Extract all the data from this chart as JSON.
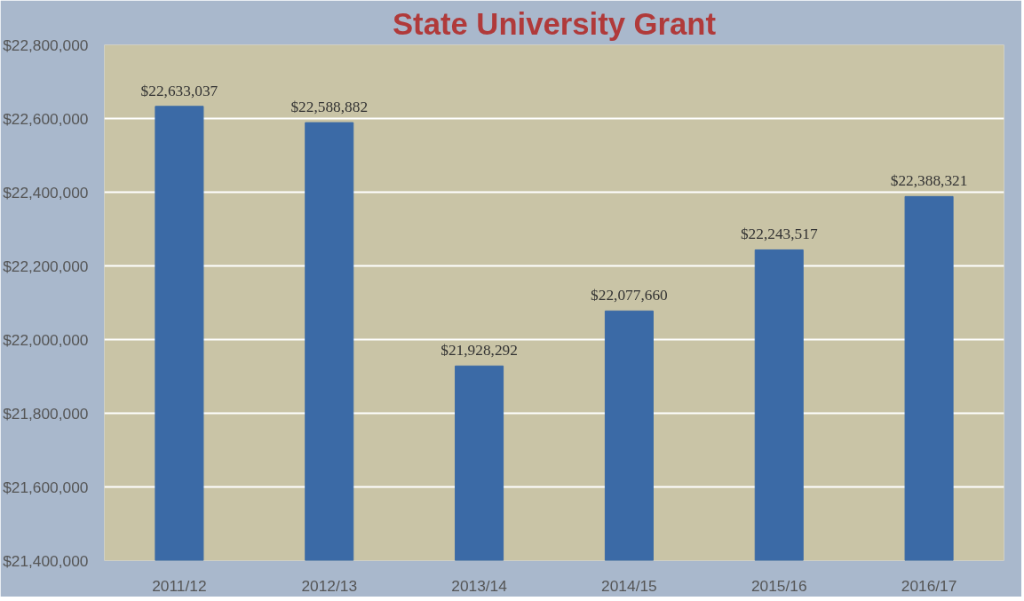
{
  "chart_data": {
    "type": "bar",
    "title": "State University Grant",
    "categories": [
      "2011/12",
      "2012/13",
      "2013/14",
      "2014/15",
      "2015/16",
      "2016/17"
    ],
    "values": [
      22633037,
      22588882,
      21928292,
      22077660,
      22243517,
      22388321
    ],
    "value_labels": [
      "$22,633,037",
      "$22,588,882",
      "$21,928,292",
      "$22,077,660",
      "$22,243,517",
      "$22,388,321"
    ],
    "color": "#3b6aa6",
    "ylim": [
      21400000,
      22800000
    ],
    "yticks": [
      {
        "value": 21400000,
        "label": "$21,400,000"
      },
      {
        "value": 21600000,
        "label": "$21,600,000"
      },
      {
        "value": 21800000,
        "label": "$21,800,000"
      },
      {
        "value": 22000000,
        "label": "$22,000,000"
      },
      {
        "value": 22200000,
        "label": "$22,200,000"
      },
      {
        "value": 22400000,
        "label": "$22,400,000"
      },
      {
        "value": 22600000,
        "label": "$22,600,000"
      },
      {
        "value": 22800000,
        "label": "$22,800,000"
      }
    ],
    "grid": "y"
  }
}
